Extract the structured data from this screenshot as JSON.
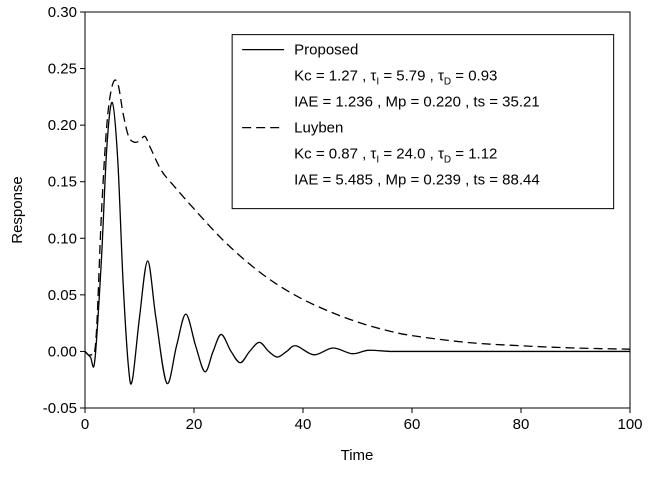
{
  "chart_data": {
    "type": "line",
    "xlabel": "Time",
    "ylabel": "Response",
    "xlim": [
      0,
      100
    ],
    "xticks": [
      0,
      20,
      40,
      60,
      80,
      100
    ],
    "ylim": [
      -0.05,
      0.3
    ],
    "yticks": [
      {
        "value": -0.05,
        "label": "-0.05"
      },
      {
        "value": 0,
        "label": "0.00"
      },
      {
        "value": 0.05,
        "label": "0.05"
      },
      {
        "value": 0.1,
        "label": "0.10"
      },
      {
        "value": 0.15,
        "label": "0.15"
      },
      {
        "value": 0.2,
        "label": "0.20"
      },
      {
        "value": 0.25,
        "label": "0.25"
      },
      {
        "value": 0.3,
        "label": "0.30"
      }
    ],
    "legend": "upper right",
    "series": [
      {
        "name": "Proposed",
        "color": "#000000",
        "linestyle": "solid",
        "params": [
          "Kc = 1.27 , τ",
          "I",
          " = 5.79 , τ",
          "D",
          " = 0.93"
        ],
        "metrics": "IAE = 1.236 , Mp = 0.220 , ts = 35.21",
        "x": [
          0,
          1,
          1.8,
          3,
          4,
          5,
          6,
          7,
          8,
          8.7,
          10,
          11.5,
          13,
          15,
          16.8,
          18.5,
          20.3,
          22,
          23.5,
          25,
          26.8,
          28.5,
          30.2,
          32,
          33.7,
          35.3,
          37,
          38.7,
          42,
          45.5,
          49,
          52,
          56,
          60,
          100
        ],
        "values": [
          0,
          -0.005,
          -0.008,
          0.08,
          0.18,
          0.22,
          0.17,
          0.06,
          -0.015,
          -0.025,
          0.03,
          0.08,
          0.03,
          -0.028,
          0.005,
          0.033,
          0.005,
          -0.018,
          0,
          0.015,
          0,
          -0.01,
          0,
          0.008,
          0,
          -0.005,
          0,
          0.005,
          -0.003,
          0.003,
          -0.002,
          0.001,
          0,
          0,
          0
        ]
      },
      {
        "name": "Luyben",
        "color": "#000000",
        "linestyle": "dashed",
        "params": [
          "Kc = 0.87 , τ",
          "I",
          " = 24.0 , τ",
          "D",
          " = 1.12"
        ],
        "metrics": "IAE = 5.485 , Mp = 0.239 , ts = 88.44",
        "x": [
          0,
          1,
          2,
          3,
          4,
          5,
          6,
          7,
          8,
          9,
          10,
          11,
          12,
          14,
          16,
          20,
          25,
          30,
          35,
          40,
          45,
          50,
          55,
          60,
          70,
          80,
          90,
          100
        ],
        "values": [
          0,
          -0.003,
          0.01,
          0.12,
          0.2,
          0.235,
          0.237,
          0.21,
          0.19,
          0.185,
          0.186,
          0.19,
          0.18,
          0.16,
          0.148,
          0.126,
          0.1,
          0.078,
          0.06,
          0.046,
          0.035,
          0.026,
          0.019,
          0.014,
          0.008,
          0.005,
          0.003,
          0.002
        ]
      }
    ]
  }
}
